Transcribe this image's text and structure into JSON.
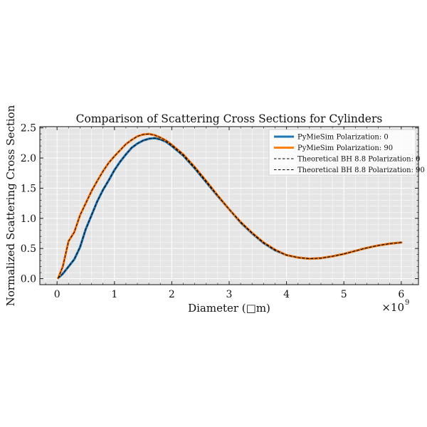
{
  "chart_data": {
    "type": "line",
    "title": "Comparison of Scattering Cross Sections for Cylinders",
    "xlabel": "Diameter (□m)",
    "ylabel": "Normalized Scattering Cross Section",
    "x_scale_label": "×10",
    "x_scale_exponent": "9",
    "xlim": [
      -0.3,
      6.3
    ],
    "ylim": [
      -0.1,
      2.52
    ],
    "x_ticks": [
      0,
      1,
      2,
      3,
      4,
      5,
      6
    ],
    "x_tick_labels": [
      "0",
      "1",
      "2",
      "3",
      "4",
      "5",
      "6"
    ],
    "y_ticks": [
      0.0,
      0.5,
      1.0,
      1.5,
      2.0,
      2.5
    ],
    "y_tick_labels": [
      "0.0",
      "0.5",
      "1.0",
      "1.5",
      "2.0",
      "2.5"
    ],
    "grid": true,
    "legend_position": "top-right",
    "x": [
      0.02,
      0.1,
      0.2,
      0.3,
      0.4,
      0.5,
      0.6,
      0.7,
      0.8,
      0.9,
      1.0,
      1.1,
      1.2,
      1.3,
      1.4,
      1.5,
      1.6,
      1.7,
      1.8,
      1.9,
      2.0,
      2.2,
      2.4,
      2.6,
      2.8,
      3.0,
      3.2,
      3.4,
      3.6,
      3.8,
      4.0,
      4.2,
      4.4,
      4.6,
      4.8,
      5.0,
      5.2,
      5.4,
      5.6,
      5.8,
      6.0
    ],
    "series": [
      {
        "name": "PyMieSim Polarization: 0",
        "color": "#1f77b4",
        "style": "solid",
        "values": [
          0.01,
          0.08,
          0.2,
          0.32,
          0.52,
          0.82,
          1.05,
          1.28,
          1.47,
          1.63,
          1.8,
          1.94,
          2.06,
          2.17,
          2.24,
          2.29,
          2.32,
          2.33,
          2.31,
          2.27,
          2.2,
          2.04,
          1.83,
          1.6,
          1.37,
          1.15,
          0.93,
          0.75,
          0.59,
          0.47,
          0.39,
          0.35,
          0.33,
          0.34,
          0.37,
          0.41,
          0.46,
          0.51,
          0.55,
          0.58,
          0.6
        ]
      },
      {
        "name": "PyMieSim Polarization: 90",
        "color": "#ff7f0e",
        "style": "solid",
        "values": [
          0.01,
          0.2,
          0.62,
          0.77,
          1.05,
          1.25,
          1.45,
          1.62,
          1.78,
          1.92,
          2.03,
          2.13,
          2.23,
          2.3,
          2.36,
          2.39,
          2.4,
          2.38,
          2.34,
          2.29,
          2.22,
          2.06,
          1.85,
          1.62,
          1.38,
          1.15,
          0.94,
          0.76,
          0.6,
          0.48,
          0.39,
          0.35,
          0.33,
          0.34,
          0.37,
          0.41,
          0.46,
          0.51,
          0.55,
          0.58,
          0.6
        ]
      },
      {
        "name": "Theoretical BH 8.8 Polarization: 0",
        "color": "#000000",
        "style": "dashed",
        "values": [
          0.01,
          0.08,
          0.2,
          0.32,
          0.52,
          0.82,
          1.05,
          1.28,
          1.47,
          1.63,
          1.8,
          1.94,
          2.06,
          2.17,
          2.24,
          2.29,
          2.32,
          2.33,
          2.31,
          2.27,
          2.2,
          2.04,
          1.83,
          1.6,
          1.37,
          1.15,
          0.93,
          0.75,
          0.59,
          0.47,
          0.39,
          0.35,
          0.33,
          0.34,
          0.37,
          0.41,
          0.46,
          0.51,
          0.55,
          0.58,
          0.6
        ]
      },
      {
        "name": "Theoretical BH 8.8 Polarization: 90",
        "color": "#000000",
        "style": "dashed",
        "values": [
          0.01,
          0.2,
          0.62,
          0.77,
          1.05,
          1.25,
          1.45,
          1.62,
          1.78,
          1.92,
          2.03,
          2.13,
          2.23,
          2.3,
          2.36,
          2.39,
          2.4,
          2.38,
          2.34,
          2.29,
          2.22,
          2.06,
          1.85,
          1.62,
          1.38,
          1.15,
          0.94,
          0.76,
          0.6,
          0.48,
          0.39,
          0.35,
          0.33,
          0.34,
          0.37,
          0.41,
          0.46,
          0.51,
          0.55,
          0.58,
          0.6
        ]
      }
    ],
    "colors": {
      "plot_background": "#e5e5e5",
      "grid": "#ffffff",
      "axes": "#222222"
    }
  }
}
